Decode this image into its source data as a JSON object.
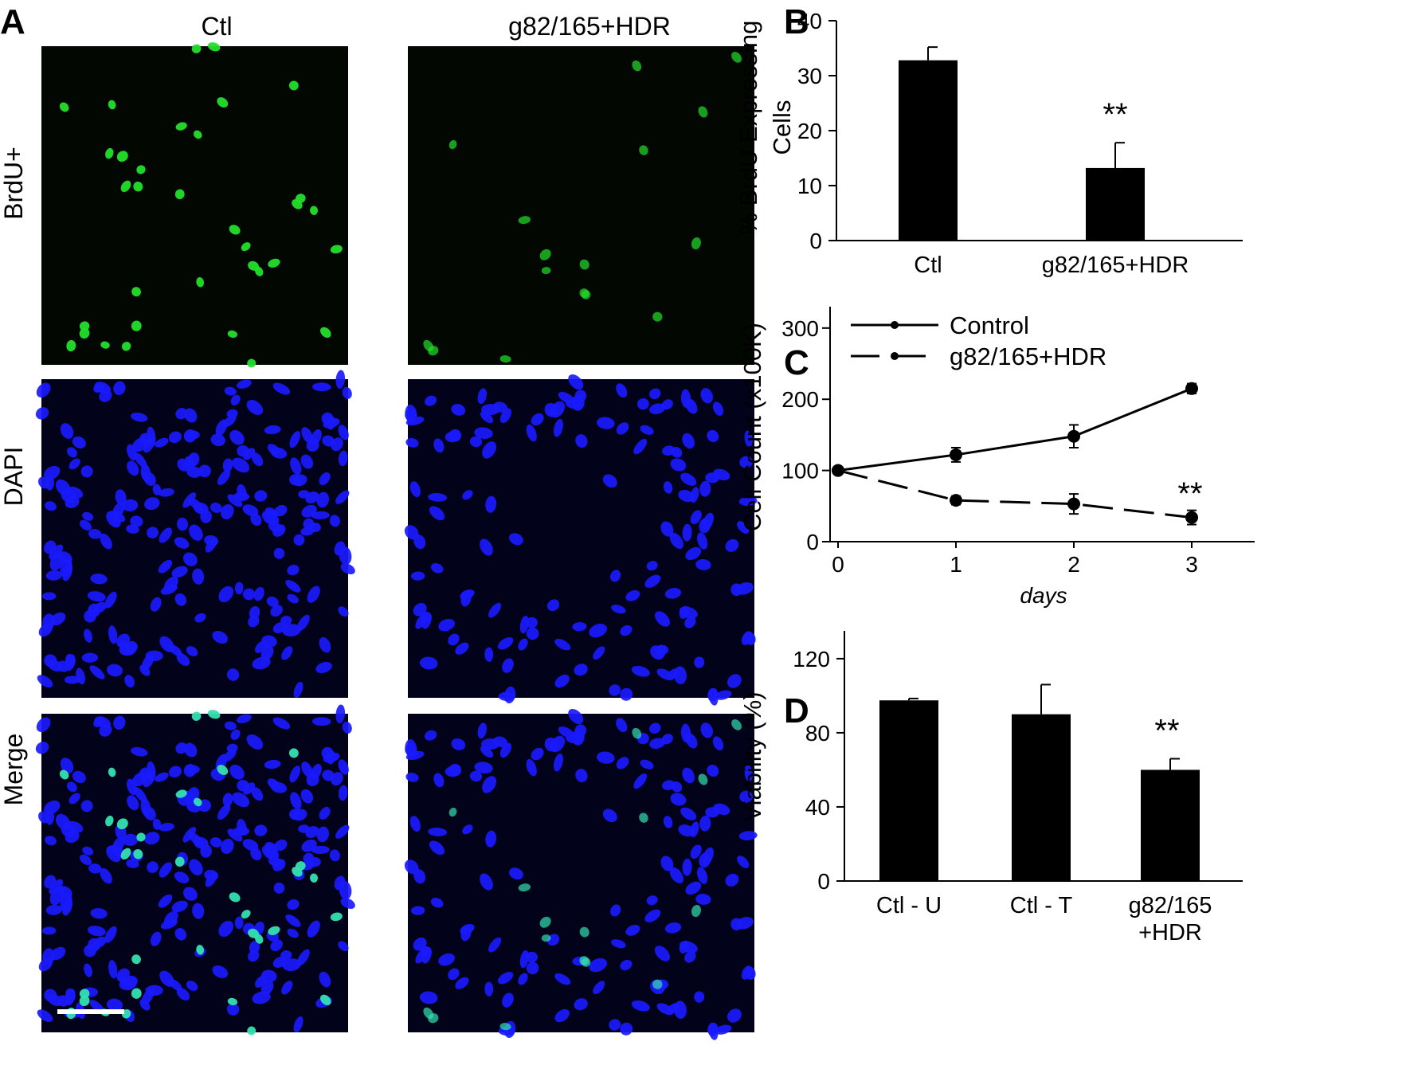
{
  "panel_a": {
    "letter": "A",
    "columns": [
      "Ctl",
      "g82/165+HDR"
    ],
    "rows": [
      "BrdU+",
      "DAPI",
      "Merge"
    ]
  },
  "colors": {
    "brdu_green": "#22e02a",
    "dapi_blue": "#1a1aff",
    "merge_cyan": "#33e0b0",
    "bar_fill": "#000000"
  },
  "chart_data": [
    {
      "panel": "B",
      "type": "bar",
      "categories": [
        "Ctl",
        "g82/165+HDR"
      ],
      "values": [
        32.8,
        13.2
      ],
      "errors": [
        2.4,
        4.6
      ],
      "ylabel": "% BrdU Expressing Cells",
      "ylim": [
        0,
        40
      ],
      "yticks": [
        "0",
        "10",
        "20",
        "30",
        "40"
      ],
      "annotations": [
        {
          "category": "g82/165+HDR",
          "text": "**"
        }
      ]
    },
    {
      "panel": "C",
      "type": "line",
      "x": [
        0,
        1,
        2,
        3
      ],
      "xticks": [
        "0",
        "1",
        "2",
        "3"
      ],
      "xlabel": "days",
      "ylabel": "Cell Count (x100K)",
      "ylim": [
        0,
        330
      ],
      "yticks": [
        "0",
        "100",
        "200",
        "300"
      ],
      "legend_position": "top-left",
      "series": [
        {
          "name": "Control",
          "style": "solid",
          "values": [
            100,
            122,
            148,
            215
          ],
          "errors": [
            4,
            10,
            16,
            7
          ]
        },
        {
          "name": "g82/165+HDR",
          "style": "dashed",
          "values": [
            100,
            58,
            53,
            34
          ],
          "errors": [
            4,
            6,
            14,
            10
          ]
        }
      ],
      "annotations": [
        {
          "x": 3,
          "text": "**"
        }
      ]
    },
    {
      "panel": "D",
      "type": "bar",
      "categories": [
        "Ctl - U",
        "Ctl - T",
        "g82/165\n+HDR"
      ],
      "values": [
        97.5,
        90,
        60
      ],
      "errors": [
        1,
        16,
        6
      ],
      "ylabel": "Viability (%)",
      "ylim": [
        0,
        135
      ],
      "yticks": [
        "0",
        "40",
        "80",
        "120"
      ],
      "annotations": [
        {
          "category": "g82/165\n+HDR",
          "text": "**"
        }
      ]
    }
  ]
}
